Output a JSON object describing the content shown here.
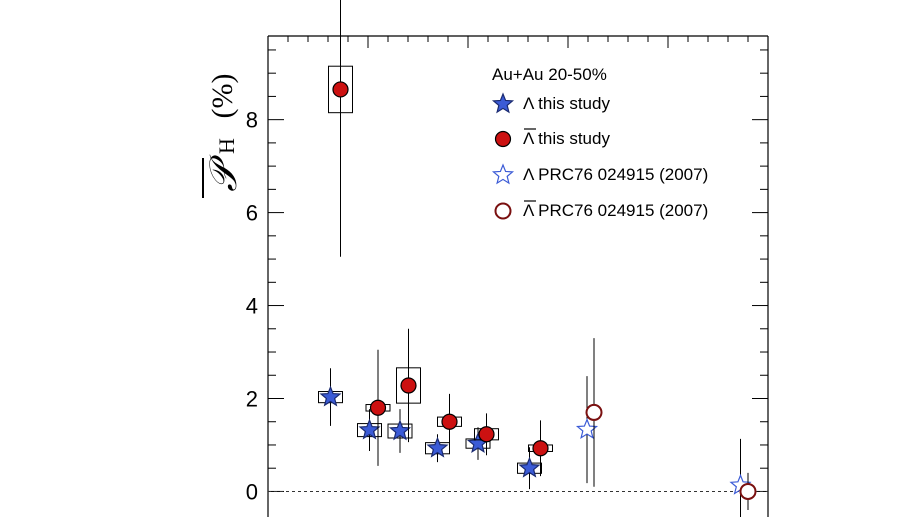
{
  "chart_data": {
    "type": "scatter",
    "title": "",
    "xlabel": "",
    "ylabel": "P̄H (%)",
    "ylabel_parts": {
      "symbol": "𝒫",
      "subscript": "H",
      "unit": "(%)"
    },
    "ylim": [
      -0.55,
      9.8
    ],
    "xlim": [
      0,
      1
    ],
    "yticks": [
      0,
      2,
      4,
      6,
      8
    ],
    "ytick_labels": [
      "0",
      "2",
      "4",
      "6",
      "8"
    ],
    "grid": false,
    "reference_line": {
      "y": 0,
      "style": "dashed"
    },
    "legend": {
      "placement": "top-right",
      "title": "Au+Au 20-50%",
      "entries": [
        {
          "key": "lambda_this",
          "label": "Λ this study"
        },
        {
          "key": "antilambda_this",
          "label": "Λ this study",
          "overline": true
        },
        {
          "key": "lambda_prc",
          "label": "Λ PRC76 024915 (2007)"
        },
        {
          "key": "antilambda_prc",
          "label": "Λ PRC76 024915 (2007)",
          "overline": true
        }
      ]
    },
    "series": [
      {
        "key": "lambda_this",
        "marker": "star",
        "color": "#3b5bd6",
        "filled": true,
        "points": [
          {
            "x": 0.125,
            "y": 2.03,
            "stat": [
              0.62,
              0.62
            ],
            "sys": 0.12
          },
          {
            "x": 0.203,
            "y": 1.32,
            "stat": [
              0.45,
              0.45
            ],
            "sys": 0.14
          },
          {
            "x": 0.264,
            "y": 1.3,
            "stat": [
              0.47,
              0.47
            ],
            "sys": 0.15
          },
          {
            "x": 0.339,
            "y": 0.93,
            "stat": [
              0.3,
              0.3
            ],
            "sys": 0.12
          },
          {
            "x": 0.42,
            "y": 1.03,
            "stat": [
              0.35,
              0.35
            ],
            "sys": 0.1
          },
          {
            "x": 0.523,
            "y": 0.5,
            "stat": [
              0.45,
              0.45
            ],
            "sys": 0.11
          }
        ]
      },
      {
        "key": "antilambda_this",
        "marker": "circle",
        "color": "#cc1111",
        "filled": true,
        "points": [
          {
            "x": 0.145,
            "y": 8.65,
            "stat": [
              3.6,
              3.6
            ],
            "sys": 0.5
          },
          {
            "x": 0.22,
            "y": 1.8,
            "stat": [
              1.25,
              1.25
            ],
            "sys": 0.07
          },
          {
            "x": 0.281,
            "y": 2.28,
            "stat": [
              1.22,
              1.22
            ],
            "sys": 0.38
          },
          {
            "x": 0.363,
            "y": 1.5,
            "stat": [
              0.6,
              0.6
            ],
            "sys": 0.1
          },
          {
            "x": 0.437,
            "y": 1.23,
            "stat": [
              0.45,
              0.45
            ],
            "sys": 0.12
          },
          {
            "x": 0.545,
            "y": 0.93,
            "stat": [
              0.6,
              0.6
            ],
            "sys": 0.07
          }
        ]
      },
      {
        "key": "lambda_prc",
        "marker": "star",
        "color": "#3b5bd6",
        "filled": false,
        "points": [
          {
            "x": 0.638,
            "y": 1.33,
            "stat": [
              1.15,
              1.15
            ]
          },
          {
            "x": 0.945,
            "y": 0.13,
            "stat": [
              1.0,
              1.0
            ]
          }
        ]
      },
      {
        "key": "antilambda_prc",
        "marker": "circle",
        "color": "#7a1010",
        "filled": false,
        "points": [
          {
            "x": 0.652,
            "y": 1.7,
            "stat": [
              1.6,
              1.6
            ]
          },
          {
            "x": 0.96,
            "y": 0.0,
            "stat": [
              0.4,
              0.4
            ]
          }
        ]
      }
    ]
  }
}
